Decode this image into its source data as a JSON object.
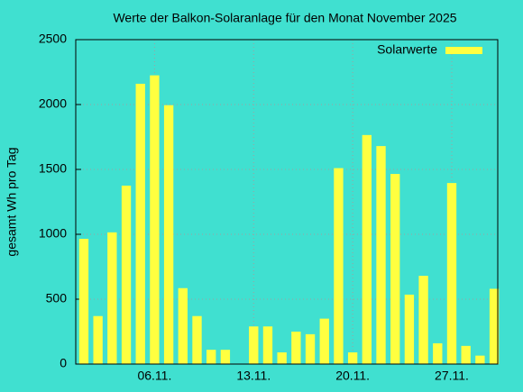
{
  "chart_data": {
    "type": "bar",
    "title": "Werte der Balkon-Solaranlage für den Monat November 2025",
    "ylabel": "gesamt Wh pro Tag",
    "x": [
      1,
      2,
      3,
      4,
      5,
      6,
      7,
      8,
      9,
      10,
      11,
      12,
      13,
      14,
      15,
      16,
      17,
      18,
      19,
      20,
      21,
      22,
      23,
      24,
      25,
      26,
      27,
      28,
      29,
      30
    ],
    "series": [
      {
        "name": "Solarwerte",
        "color": "#ffff40",
        "values": [
          965,
          370,
          1015,
          1375,
          2160,
          2225,
          1995,
          585,
          370,
          110,
          110,
          0,
          290,
          290,
          90,
          250,
          230,
          350,
          1510,
          90,
          1765,
          1680,
          1465,
          535,
          680,
          160,
          1395,
          140,
          65,
          580
        ]
      }
    ],
    "xlim": [
      0.43,
      30.25
    ],
    "xticks": [
      {
        "value": 6,
        "label": "06.11."
      },
      {
        "value": 13,
        "label": "13.11."
      },
      {
        "value": 20,
        "label": "20.11."
      },
      {
        "value": 27,
        "label": "27.11."
      }
    ],
    "ylim": [
      0,
      2500
    ],
    "yticks": [
      0,
      500,
      1000,
      1500,
      2000,
      2500
    ],
    "grid": true,
    "legend": "top-right"
  }
}
